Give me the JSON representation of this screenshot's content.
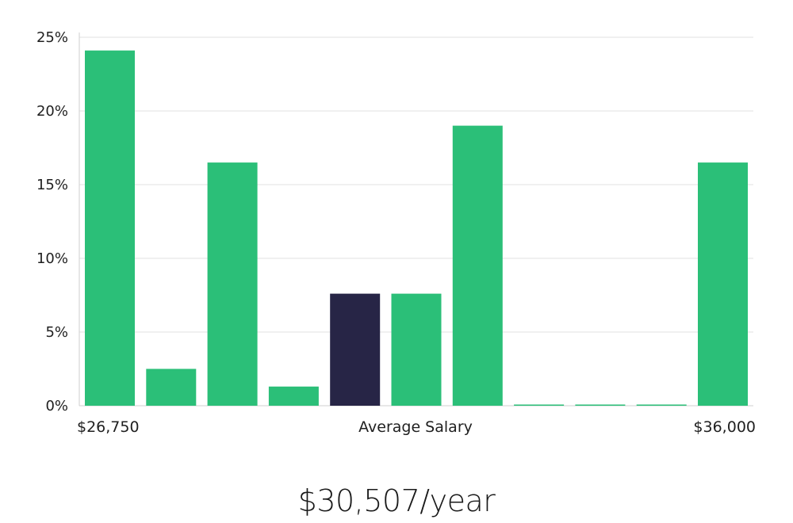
{
  "chart_data": {
    "type": "bar",
    "title": "",
    "xlabel": "Average Salary",
    "ylabel": "",
    "x_range_labels": {
      "min": "$26,750",
      "max": "$36,000"
    },
    "y_ticks": [
      "0%",
      "5%",
      "10%",
      "15%",
      "20%",
      "25%"
    ],
    "ylim": [
      0,
      25
    ],
    "values": [
      24.1,
      2.5,
      16.5,
      1.3,
      7.6,
      7.6,
      19.0,
      0.05,
      0.05,
      0.05,
      16.5
    ],
    "highlight_index": 4,
    "colors": {
      "bar": "#2bbf78",
      "highlight": "#272546",
      "grid": "#e2e2e2",
      "axis": "#cfcfcf"
    }
  },
  "summary": {
    "average_salary": "$30,507/year"
  }
}
